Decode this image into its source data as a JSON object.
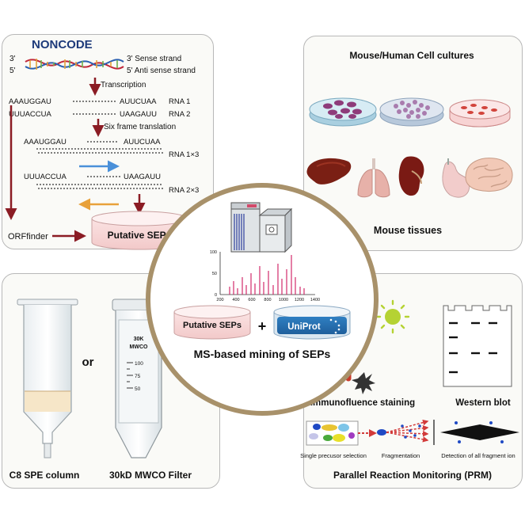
{
  "noncode_panel": {
    "logo_text": "NONCODE",
    "strand_3prime_left": "3'",
    "strand_5prime_left": "5'",
    "sense_strand_label": "3' Sense strand",
    "antisense_strand_label": "5' Anti sense strand",
    "transcription_label": "Transcription",
    "rna1_left": "AAAUGGAU",
    "rna1_right": "AUUCUAA",
    "rna1_label": "RNA 1",
    "rna2_left": "UUUACCUA",
    "rna2_right": "UAAGAUU",
    "rna2_label": "RNA 2",
    "translation_label": "Six frame translation",
    "frame1_left": "AAAUGGAU",
    "frame1_right": "AUUCUAA",
    "frame1_label": "RNA 1×3",
    "frame2_left": "UUUACCUA",
    "frame2_right": "UAAGAUU",
    "frame2_label": "RNA 2×3",
    "orffinder_label": "ORFfinder",
    "putative_seps_label": "Putative SEPs"
  },
  "culture_panel": {
    "title": "Mouse/Human Cell cultures",
    "tissues_label": "Mouse tissues",
    "tissues": [
      "liver-icon",
      "lung-icon",
      "kidney-icon",
      "stomach-icon",
      "brain-icon"
    ]
  },
  "center": {
    "spectrum_ticks_y": [
      "100",
      "50",
      "0"
    ],
    "spectrum_ticks_x": [
      "200",
      "400",
      "600",
      "800",
      "1000",
      "1200",
      "1400"
    ],
    "putative_seps_label": "Putative SEPs",
    "plus": "+",
    "uniprot_label": "UniProt",
    "title": "MS-based mining of SEPs"
  },
  "prep_panel": {
    "or_label": "or",
    "filter_text_top": "30K",
    "filter_text_sub": "MWCO",
    "filter_marks": [
      "100",
      "75",
      "50"
    ],
    "spe_label": "C8 SPE column",
    "filter_label": "30kD MWCO Filter"
  },
  "validation_panel": {
    "immuno_label": "Immunofluence staining",
    "western_label": "Western blot",
    "step1_label": "Single precusor selection",
    "step2_label": "Fragmentation",
    "step3_label": "Detection of all fragment ion",
    "prm_label": "Parallel Reaction Monitoring (PRM)"
  },
  "colors": {
    "dark_red": "#8b1c24",
    "blue_arrow": "#4a90d9",
    "orange_arrow": "#e8a13a",
    "ring": "#a8916a",
    "noncode_blue": "#1d3a7a"
  }
}
